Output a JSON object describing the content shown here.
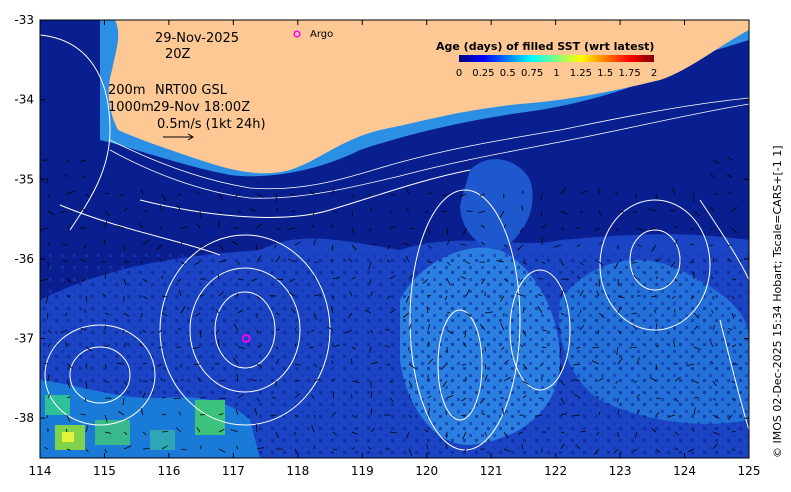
{
  "map": {
    "date_line": "29-Nov-2025",
    "time_line": "20Z",
    "isobath_labels": [
      "200m",
      "1000m"
    ],
    "product": "NRT00 GSL",
    "product_time": "29-Nov 18:00Z",
    "vector_scale": "0.5m/s (1kt 24h)",
    "argo_label": "Argo",
    "colorbar": {
      "title": "Age (days) of filled SST (wrt latest)",
      "ticks": [
        "0",
        "0.25",
        "0.5",
        "0.75",
        "1",
        "1.25",
        "1.5",
        "1.75",
        "2"
      ],
      "colors": [
        "#00007f",
        "#0000ff",
        "#007fff",
        "#00ffff",
        "#7fff7f",
        "#ffff00",
        "#ff7f00",
        "#ff0000",
        "#7f0000"
      ]
    },
    "x_axis": {
      "ticks": [
        "114",
        "115",
        "116",
        "117",
        "118",
        "119",
        "120",
        "121",
        "122",
        "123",
        "124",
        "125"
      ],
      "range": [
        114,
        125
      ]
    },
    "y_axis": {
      "ticks": [
        "-33",
        "-34",
        "-35",
        "-36",
        "-37",
        "-38"
      ],
      "range": [
        -38.5,
        -33
      ]
    },
    "credit": "© IMOS 02-Dec-2025 15:34 Hobart; Tscale=CARS+[-1 1]",
    "colors": {
      "land": "#fdc894",
      "deep_ocean": "#0a1f8f",
      "mid_ocean": "#1e4fd0",
      "shelf": "#2b8fe6",
      "contour": "#ffffff",
      "argo": "#ff00ff"
    },
    "argo_float": {
      "lon": 117.2,
      "lat": -37.0
    }
  }
}
